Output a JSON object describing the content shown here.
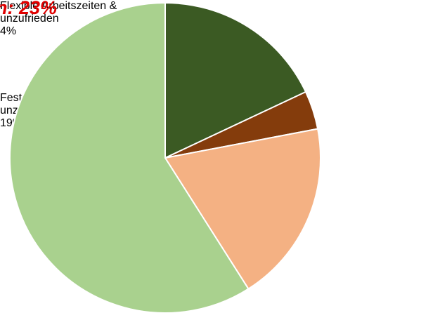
{
  "chart_data": {
    "type": "pie",
    "annotation": "n: 23%",
    "categories": [
      null,
      "Flexible Arbeitszeiten & unzufrieden",
      "Feste Arbeitszeiten & unzufrieden",
      null
    ],
    "values": [
      18,
      4,
      19,
      59
    ],
    "value_labels": [
      null,
      "4%",
      "19%",
      null
    ],
    "colors": [
      "#3b5a23",
      "#843c0c",
      "#f4b183",
      "#a9d18e"
    ]
  }
}
